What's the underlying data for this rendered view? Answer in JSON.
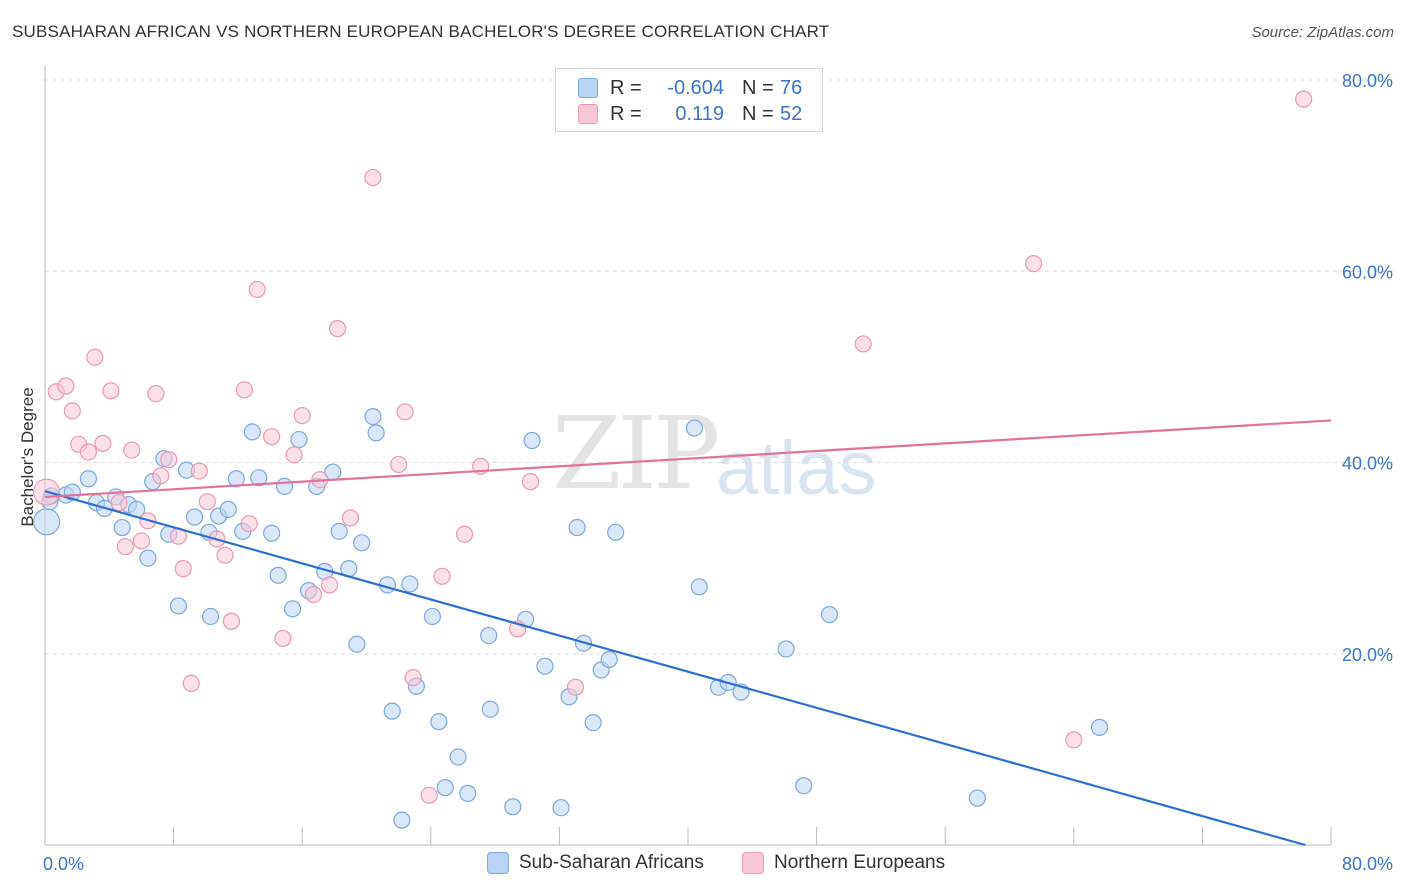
{
  "title": "SUBSAHARAN AFRICAN VS NORTHERN EUROPEAN BACHELOR'S DEGREE CORRELATION CHART",
  "source": "Source: ZipAtlas.com",
  "watermark": {
    "zip": "ZIP",
    "atlas": "atlas"
  },
  "legend_top": {
    "rows": [
      {
        "r_label": "R =",
        "r_value": "-0.604",
        "n_label": "N =",
        "n_value": "76"
      },
      {
        "r_label": "R =",
        "r_value": "0.119",
        "n_label": "N =",
        "n_value": "52"
      }
    ]
  },
  "legend_bottom": [
    "Sub-Saharan Africans",
    "Northern Europeans"
  ],
  "colors": {
    "blue_fill": "#bad3f2",
    "blue_stroke": "#7ea8de",
    "blue_line": "#2f6fcf",
    "pink_fill": "#f8c6d4",
    "pink_stroke": "#ec99b2",
    "pink_line": "#e2729a",
    "axis_text": "#3b74c9",
    "grid": "#dddddd"
  },
  "chart_data": {
    "type": "scatter",
    "title": "SUBSAHARAN AFRICAN VS NORTHERN EUROPEAN BACHELOR'S DEGREE CORRELATION CHART",
    "xlabel": "",
    "ylabel": "Bachelor's Degree",
    "xlim": [
      0,
      80
    ],
    "ylim": [
      0,
      80
    ],
    "x_tick_labels": [
      "0.0%",
      "80.0%"
    ],
    "y_tick_values": [
      20,
      40,
      60,
      80
    ],
    "y_tick_labels": [
      "20.0%",
      "40.0%",
      "60.0%",
      "80.0%"
    ],
    "grid": true,
    "legend_position": "bottom",
    "series": [
      {
        "name": "Sub-Saharan Africans",
        "color": "#bad3f2",
        "R": -0.604,
        "N": 76,
        "trend": {
          "x": [
            0,
            78.4
          ],
          "y": [
            37.0,
            0.0
          ]
        },
        "points": [
          [
            0.1,
            33.8
          ],
          [
            0.4,
            36.5
          ],
          [
            1.3,
            36.6
          ],
          [
            1.7,
            36.9
          ],
          [
            2.7,
            38.3
          ],
          [
            3.2,
            35.8
          ],
          [
            3.7,
            35.2
          ],
          [
            4.4,
            36.4
          ],
          [
            4.8,
            33.2
          ],
          [
            5.2,
            35.6
          ],
          [
            5.7,
            35.1
          ],
          [
            6.4,
            30.0
          ],
          [
            6.7,
            38.0
          ],
          [
            7.4,
            40.4
          ],
          [
            7.7,
            32.5
          ],
          [
            8.3,
            25.0
          ],
          [
            8.8,
            39.2
          ],
          [
            9.3,
            34.3
          ],
          [
            10.2,
            32.7
          ],
          [
            10.3,
            23.9
          ],
          [
            10.8,
            34.4
          ],
          [
            11.4,
            35.1
          ],
          [
            11.9,
            38.3
          ],
          [
            12.3,
            32.8
          ],
          [
            12.9,
            43.2
          ],
          [
            13.3,
            38.4
          ],
          [
            14.1,
            32.6
          ],
          [
            14.5,
            28.2
          ],
          [
            14.9,
            37.5
          ],
          [
            15.4,
            24.7
          ],
          [
            15.8,
            42.4
          ],
          [
            16.4,
            26.6
          ],
          [
            16.9,
            37.5
          ],
          [
            17.4,
            28.6
          ],
          [
            17.9,
            39.0
          ],
          [
            18.3,
            32.8
          ],
          [
            18.9,
            28.9
          ],
          [
            19.4,
            21.0
          ],
          [
            19.7,
            31.6
          ],
          [
            20.4,
            44.8
          ],
          [
            20.6,
            43.1
          ],
          [
            21.3,
            27.2
          ],
          [
            21.6,
            14.0
          ],
          [
            22.2,
            2.6
          ],
          [
            22.7,
            27.3
          ],
          [
            23.1,
            16.6
          ],
          [
            24.1,
            23.9
          ],
          [
            24.5,
            12.9
          ],
          [
            24.9,
            6.0
          ],
          [
            25.7,
            9.2
          ],
          [
            26.3,
            5.4
          ],
          [
            27.6,
            21.9
          ],
          [
            27.7,
            14.2
          ],
          [
            29.1,
            4.0
          ],
          [
            29.9,
            23.6
          ],
          [
            30.3,
            42.3
          ],
          [
            31.1,
            18.7
          ],
          [
            32.1,
            3.9
          ],
          [
            32.6,
            15.5
          ],
          [
            33.1,
            33.2
          ],
          [
            33.5,
            21.1
          ],
          [
            34.1,
            12.8
          ],
          [
            34.6,
            18.3
          ],
          [
            35.1,
            19.4
          ],
          [
            35.5,
            32.7
          ],
          [
            40.4,
            43.6
          ],
          [
            40.7,
            27.0
          ],
          [
            41.9,
            16.5
          ],
          [
            42.5,
            17.0
          ],
          [
            43.3,
            16.0
          ],
          [
            46.1,
            20.5
          ],
          [
            47.2,
            6.2
          ],
          [
            48.8,
            24.1
          ],
          [
            58.0,
            4.9
          ],
          [
            65.6,
            12.3
          ],
          [
            0.3,
            35.9
          ]
        ]
      },
      {
        "name": "Northern Europeans",
        "color": "#f8c6d4",
        "R": 0.119,
        "N": 52,
        "trend": {
          "x": [
            0,
            80
          ],
          "y": [
            36.4,
            44.4
          ]
        },
        "points": [
          [
            0.1,
            36.9
          ],
          [
            0.7,
            47.4
          ],
          [
            1.3,
            48.0
          ],
          [
            1.7,
            45.4
          ],
          [
            2.1,
            41.9
          ],
          [
            2.7,
            41.1
          ],
          [
            3.1,
            51.0
          ],
          [
            3.6,
            42.0
          ],
          [
            4.1,
            47.5
          ],
          [
            4.6,
            35.8
          ],
          [
            5.0,
            31.2
          ],
          [
            5.4,
            41.3
          ],
          [
            6.0,
            31.8
          ],
          [
            6.4,
            33.9
          ],
          [
            6.9,
            47.2
          ],
          [
            7.2,
            38.6
          ],
          [
            7.7,
            40.3
          ],
          [
            8.3,
            32.3
          ],
          [
            8.6,
            28.9
          ],
          [
            9.1,
            16.9
          ],
          [
            9.6,
            39.1
          ],
          [
            10.1,
            35.9
          ],
          [
            10.7,
            32.0
          ],
          [
            11.2,
            30.3
          ],
          [
            11.6,
            23.4
          ],
          [
            12.4,
            47.6
          ],
          [
            12.7,
            33.6
          ],
          [
            13.2,
            58.1
          ],
          [
            14.1,
            42.7
          ],
          [
            14.8,
            21.6
          ],
          [
            15.5,
            40.8
          ],
          [
            16.0,
            44.9
          ],
          [
            16.7,
            26.2
          ],
          [
            17.1,
            38.2
          ],
          [
            17.7,
            27.2
          ],
          [
            18.2,
            54.0
          ],
          [
            19.0,
            34.2
          ],
          [
            20.4,
            69.8
          ],
          [
            22.0,
            39.8
          ],
          [
            22.4,
            45.3
          ],
          [
            22.9,
            17.5
          ],
          [
            23.9,
            5.2
          ],
          [
            24.7,
            28.1
          ],
          [
            26.1,
            32.5
          ],
          [
            27.1,
            39.6
          ],
          [
            29.4,
            22.6
          ],
          [
            30.2,
            38.0
          ],
          [
            33.0,
            16.5
          ],
          [
            50.9,
            52.4
          ],
          [
            61.5,
            60.8
          ],
          [
            64.0,
            11.0
          ],
          [
            78.3,
            78.0
          ]
        ]
      }
    ]
  }
}
